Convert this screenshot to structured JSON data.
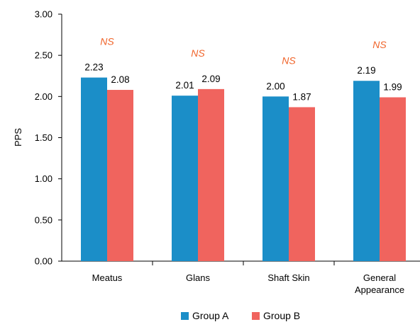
{
  "chart_data": {
    "type": "bar",
    "categories": [
      [
        "Meatus"
      ],
      [
        "Glans"
      ],
      [
        "Shaft Skin"
      ],
      [
        "General",
        "Appearance"
      ]
    ],
    "series": [
      {
        "name": "Group A",
        "values": [
          2.23,
          2.01,
          2.0,
          2.19
        ],
        "labels": [
          "2.23",
          "2.01",
          "2.00",
          "2.19"
        ],
        "color": "#1b8ec8"
      },
      {
        "name": "Group B",
        "values": [
          2.08,
          2.09,
          1.87,
          1.99
        ],
        "labels": [
          "2.08",
          "2.09",
          "1.87",
          "1.99"
        ],
        "color": "#f0645e"
      }
    ],
    "annotations": [
      "NS",
      "NS",
      "NS",
      "NS"
    ],
    "annotation_color": "#f0642a",
    "ylabel": "PPS",
    "xlabel": "",
    "title": "",
    "ylim": [
      0,
      3
    ],
    "yticks": [
      "0.00",
      "0.50",
      "1.00",
      "1.50",
      "2.00",
      "2.50",
      "3.00"
    ],
    "grid": false,
    "legend_position": "bottom"
  }
}
